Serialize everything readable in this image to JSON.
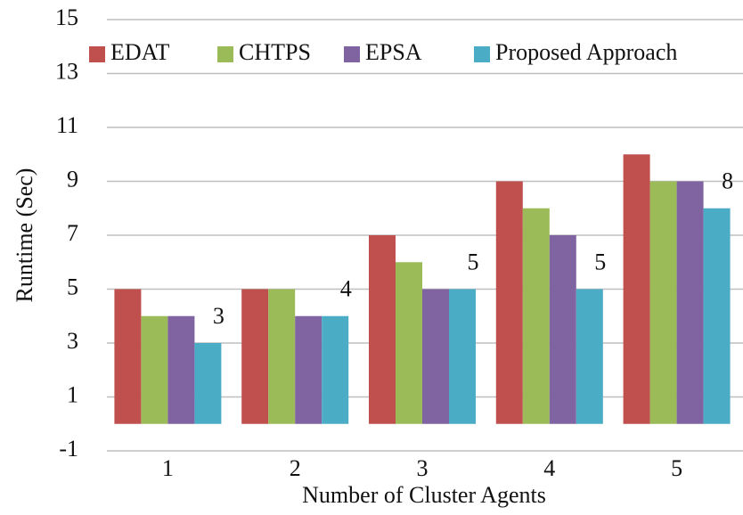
{
  "chart_data": {
    "type": "bar",
    "xlabel": "Number of Cluster Agents",
    "ylabel": "Runtime (Sec)",
    "categories": [
      "1",
      "2",
      "3",
      "4",
      "5"
    ],
    "series": [
      {
        "name": "EDAT",
        "color": "#c0504d",
        "values": [
          5,
          5,
          7,
          9,
          10
        ]
      },
      {
        "name": "CHTPS",
        "color": "#9bbb59",
        "values": [
          4,
          5,
          6,
          8,
          9
        ]
      },
      {
        "name": "EPSA",
        "color": "#8064a2",
        "values": [
          4,
          4,
          5,
          7,
          9
        ]
      },
      {
        "name": "Proposed Approach",
        "color": "#4bacc6",
        "values": [
          3,
          4,
          5,
          5,
          8
        ],
        "show_labels": true
      }
    ],
    "ylim": [
      -1,
      15
    ],
    "yticks": [
      -1,
      1,
      3,
      5,
      7,
      9,
      11,
      13,
      15
    ],
    "grid": true,
    "legend": "top"
  }
}
